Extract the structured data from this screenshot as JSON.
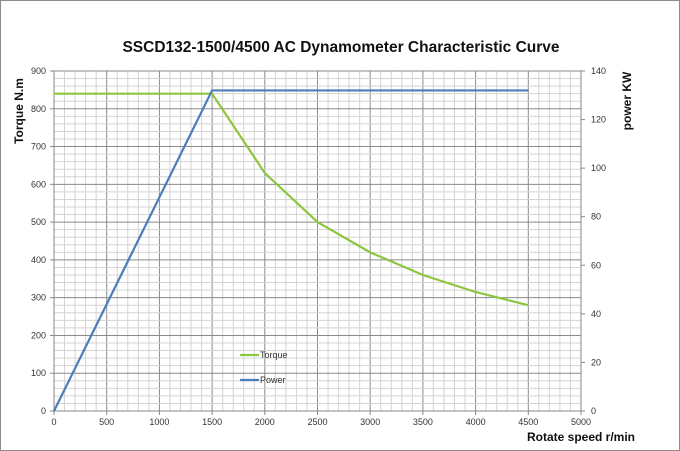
{
  "chart_data": {
    "type": "line",
    "title": "SSCD132-1500/4500  AC Dynamometer Characteristic Curve",
    "xlabel": "Rotate speed r/min",
    "ylabel": "Torque N.m",
    "y2label": "power KW",
    "xlim": [
      0,
      5000
    ],
    "ylim": [
      0,
      900
    ],
    "y2lim": [
      0,
      140
    ],
    "xticks": [
      0,
      500,
      1000,
      1500,
      2000,
      2500,
      3000,
      3500,
      4000,
      4500,
      5000
    ],
    "yticks": [
      0,
      100,
      200,
      300,
      400,
      500,
      600,
      700,
      800,
      900
    ],
    "y2ticks": [
      0,
      20,
      40,
      60,
      80,
      100,
      120,
      140
    ],
    "grid": true,
    "legend_position": "bottom-left inside",
    "series": [
      {
        "name": "Torque",
        "axis": "left",
        "color": "#8cc63f",
        "x": [
          0,
          1500,
          2000,
          2500,
          3000,
          3500,
          4000,
          4500
        ],
        "y": [
          840,
          840,
          630,
          500,
          420,
          360,
          315,
          280
        ]
      },
      {
        "name": "Power",
        "axis": "right",
        "color": "#4a7ebb",
        "x": [
          0,
          1500,
          4500
        ],
        "y": [
          0,
          132,
          132
        ]
      }
    ]
  }
}
